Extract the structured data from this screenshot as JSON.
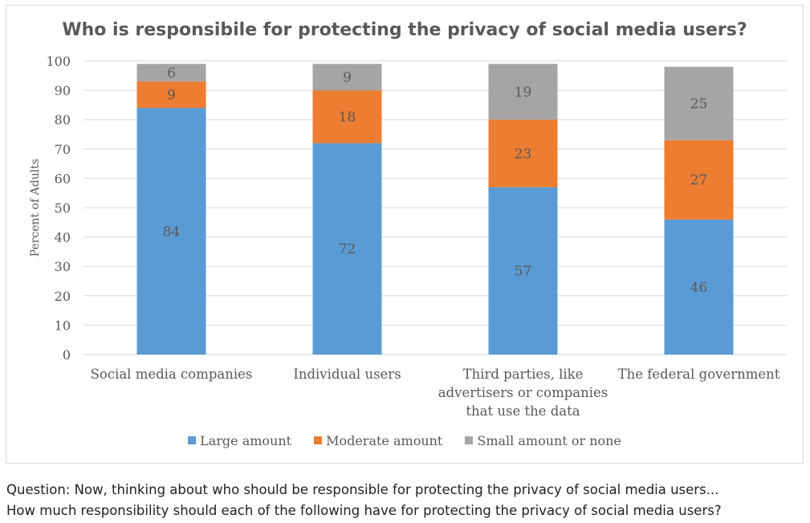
{
  "chart_data": {
    "type": "bar",
    "stacked": true,
    "title": "Who is responsibile for protecting the privacy of social media users?",
    "ylabel": "Percent of Adults",
    "xlabel": "",
    "ylim": [
      0,
      100
    ],
    "yticks": [
      0,
      10,
      20,
      30,
      40,
      50,
      60,
      70,
      80,
      90,
      100
    ],
    "grid": true,
    "legend_position": "bottom",
    "categories": [
      [
        "Social media companies"
      ],
      [
        "Individual users"
      ],
      [
        "Third parties, like",
        "advertisers or companies",
        "that use the data"
      ],
      [
        "The federal government"
      ]
    ],
    "series": [
      {
        "name": "Large amount",
        "color": "#5b9bd5",
        "values": [
          84,
          72,
          57,
          46
        ]
      },
      {
        "name": "Moderate amount",
        "color": "#ed7d31",
        "values": [
          9,
          18,
          23,
          27
        ]
      },
      {
        "name": "Small amount or none",
        "color": "#a5a5a5",
        "values": [
          6,
          9,
          19,
          25
        ]
      }
    ]
  },
  "caption": {
    "line1": "Question: Now, thinking about who should be responsible for protecting the privacy of social media users...",
    "line2": "How much responsibility should each of the following have for protecting the privacy of social media users?"
  }
}
